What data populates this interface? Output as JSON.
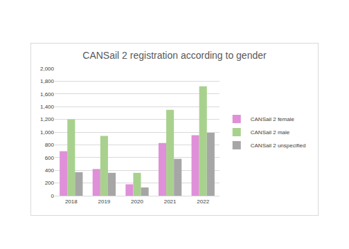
{
  "chart_data": {
    "type": "bar",
    "title": "CANSail 2 registration according to gender",
    "categories": [
      "2018",
      "2019",
      "2020",
      "2021",
      "2022"
    ],
    "series": [
      {
        "name": "CANSail 2 female",
        "color": "#df90d8",
        "values": [
          700,
          420,
          180,
          830,
          950
        ]
      },
      {
        "name": "CANSail 2 male",
        "color": "#a9d18e",
        "values": [
          1200,
          940,
          360,
          1350,
          1720
        ]
      },
      {
        "name": "CANSail 2 unspecified",
        "color": "#a6a6a6",
        "values": [
          370,
          360,
          130,
          580,
          990
        ]
      }
    ],
    "ylim": [
      0,
      2000
    ],
    "yticks": [
      0,
      200,
      400,
      600,
      800,
      {
        "value": 1000,
        "label": "1,000"
      },
      {
        "value": 1200,
        "label": "1,200"
      },
      {
        "value": 1400,
        "label": "1,400"
      },
      {
        "value": 1600,
        "label": "1,600"
      },
      {
        "value": 1800,
        "label": "1,800"
      },
      {
        "value": 2000,
        "label": "2,000"
      }
    ],
    "grid": true,
    "legend": "right"
  }
}
